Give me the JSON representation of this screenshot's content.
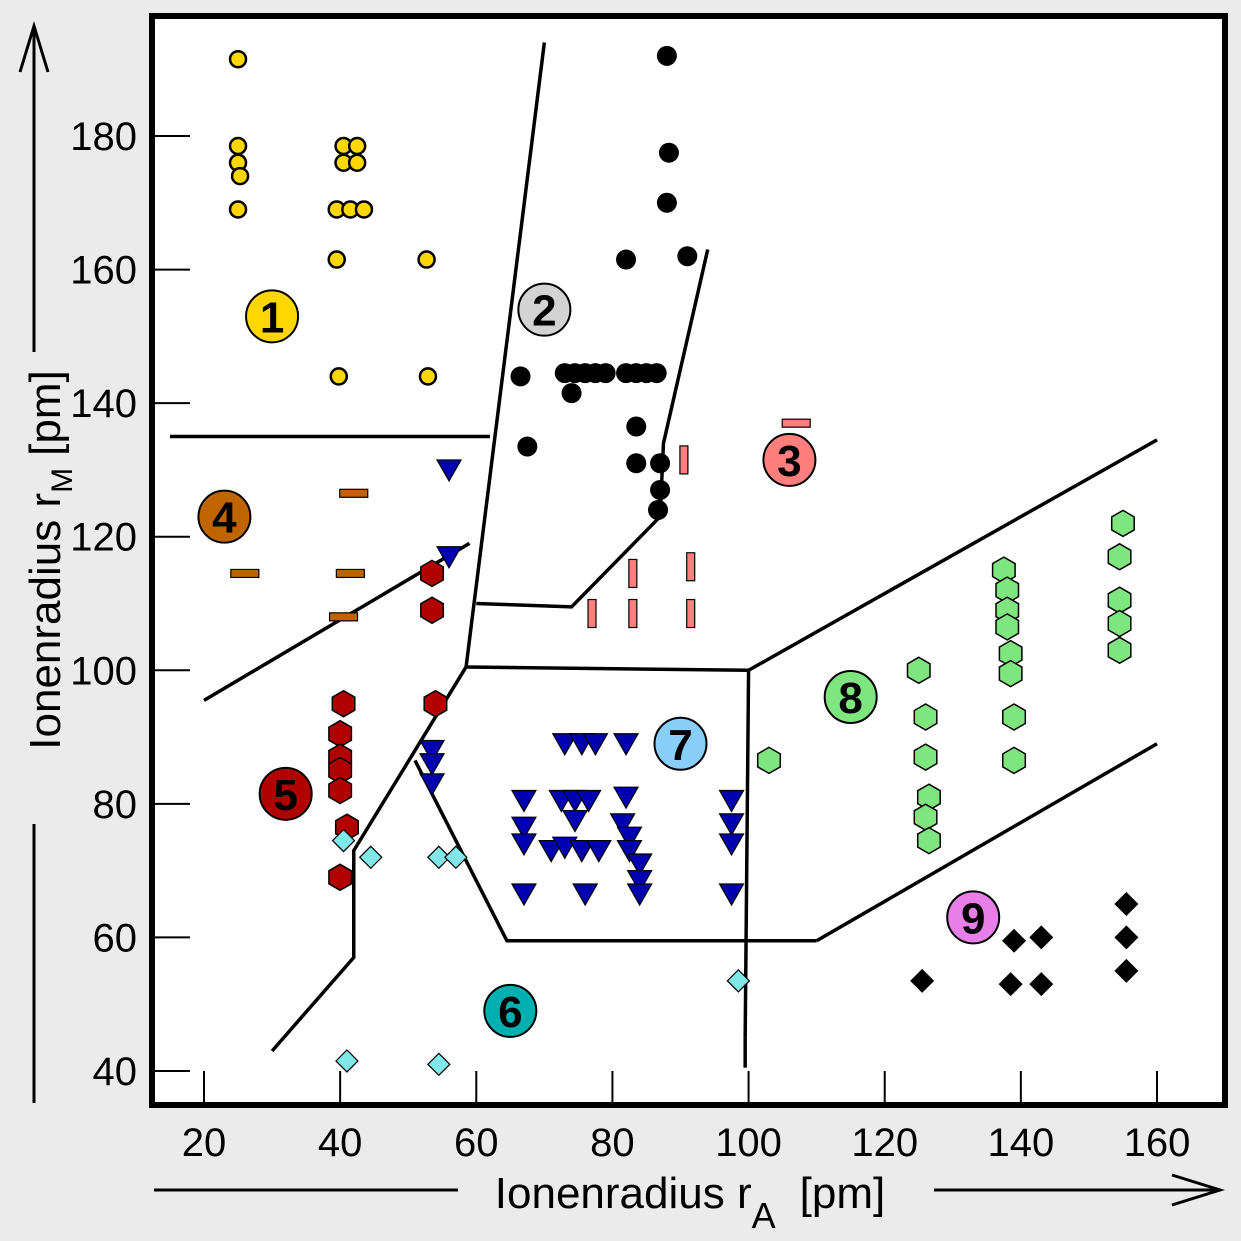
{
  "chart_data": {
    "type": "scatter",
    "title": "",
    "xlabel": "Ionenradius r_A  [pm]",
    "xlabel_main": "Ionenradius r",
    "xlabel_sub": "A",
    "xlabel_unit": "[pm]",
    "ylabel": "Ionenradius r_M [pm]",
    "ylabel_main": "Ionenradius r",
    "ylabel_sub": "M",
    "ylabel_unit": "[pm]",
    "xlim": [
      13,
      170
    ],
    "ylim": [
      35,
      198
    ],
    "xticks": [
      20,
      40,
      60,
      80,
      100,
      120,
      140,
      160
    ],
    "yticks": [
      40,
      60,
      80,
      100,
      120,
      140,
      160,
      180
    ],
    "grid": false,
    "colors": {
      "region1": "#ffd700",
      "region2": "#d3d3d3",
      "region3": "#ff7f7f",
      "region4": "#c06400",
      "region5": "#b00000",
      "region6": "#00b0b0",
      "region7": "#87cefa",
      "region8": "#7fe67f",
      "region9": "#e87ee8",
      "series2": "#000000",
      "series6": "#80e8e8",
      "series7": "#0000b0",
      "series9": "#000000"
    },
    "regions": [
      {
        "id": "1",
        "label": "1",
        "x": 30,
        "y": 153,
        "color": "#ffd700"
      },
      {
        "id": "2",
        "label": "2",
        "x": 70,
        "y": 154,
        "color": "#d3d3d3"
      },
      {
        "id": "3",
        "label": "3",
        "x": 106,
        "y": 131.5,
        "color": "#ff7f7f"
      },
      {
        "id": "4",
        "label": "4",
        "x": 23,
        "y": 123,
        "color": "#c06400"
      },
      {
        "id": "5",
        "label": "5",
        "x": 32,
        "y": 81.5,
        "color": "#b00000"
      },
      {
        "id": "6",
        "label": "6",
        "x": 65,
        "y": 49,
        "color": "#00b0b0"
      },
      {
        "id": "7",
        "label": "7",
        "x": 90,
        "y": 89,
        "color": "#87cefa"
      },
      {
        "id": "8",
        "label": "8",
        "x": 115,
        "y": 96,
        "color": "#7fe67f"
      },
      {
        "id": "9",
        "label": "9",
        "x": 133,
        "y": 63,
        "color": "#e87ee8"
      }
    ],
    "boundaries": [
      {
        "name": "b1-4",
        "points": [
          [
            15,
            135
          ],
          [
            62,
            135
          ]
        ]
      },
      {
        "name": "b1-2",
        "points": [
          [
            70,
            194
          ],
          [
            58.5,
            100.5
          ]
        ]
      },
      {
        "name": "b2-3",
        "points": [
          [
            94,
            163
          ],
          [
            87.5,
            134
          ],
          [
            87,
            123
          ],
          [
            74,
            109.5
          ],
          [
            60,
            110
          ]
        ]
      },
      {
        "name": "b4-5",
        "points": [
          [
            20,
            95.5
          ],
          [
            59,
            119
          ]
        ]
      },
      {
        "name": "b5-6-7",
        "points": [
          [
            58.5,
            100.5
          ],
          [
            42,
            73
          ],
          [
            42,
            57
          ],
          [
            30,
            43
          ]
        ]
      },
      {
        "name": "b7-top",
        "points": [
          [
            58.5,
            100.5
          ],
          [
            100,
            100
          ]
        ]
      },
      {
        "name": "b7-left",
        "points": [
          [
            51,
            86.5
          ],
          [
            64.5,
            59.5
          ],
          [
            110,
            59.5
          ]
        ]
      },
      {
        "name": "b7-8",
        "points": [
          [
            100,
            100
          ],
          [
            99.5,
            45
          ]
        ]
      },
      {
        "name": "b8-top",
        "points": [
          [
            100,
            100
          ],
          [
            160,
            134.5
          ]
        ]
      },
      {
        "name": "b8-9",
        "points": [
          [
            110,
            59.5
          ],
          [
            160,
            89
          ]
        ]
      },
      {
        "name": "b-stub",
        "points": [
          [
            99.5,
            45
          ],
          [
            99.5,
            40.5
          ]
        ]
      }
    ],
    "series": [
      {
        "name": "region-1",
        "marker": "circle",
        "color": "#ffd700",
        "points": [
          [
            25,
            191.5
          ],
          [
            25,
            178.5
          ],
          [
            25,
            176
          ],
          [
            25.3,
            174
          ],
          [
            25,
            169
          ],
          [
            39.5,
            169
          ],
          [
            41.5,
            169
          ],
          [
            43.5,
            169
          ],
          [
            40.5,
            178.5
          ],
          [
            42.5,
            178.5
          ],
          [
            40.5,
            176
          ],
          [
            42.5,
            176
          ],
          [
            39.5,
            161.5
          ],
          [
            52.7,
            161.5
          ],
          [
            39.8,
            144
          ],
          [
            52.9,
            144
          ]
        ]
      },
      {
        "name": "region-2",
        "marker": "filled-circle",
        "color": "#000000",
        "points": [
          [
            88,
            192
          ],
          [
            88.3,
            177.5
          ],
          [
            88,
            170
          ],
          [
            82,
            161.5
          ],
          [
            91,
            162
          ],
          [
            66.5,
            144
          ],
          [
            73,
            144.5
          ],
          [
            74.5,
            144.5
          ],
          [
            76,
            144.5
          ],
          [
            77.5,
            144.5
          ],
          [
            79,
            144.5
          ],
          [
            82,
            144.5
          ],
          [
            83.5,
            144.5
          ],
          [
            85,
            144.5
          ],
          [
            86.5,
            144.5
          ],
          [
            74,
            141.5
          ],
          [
            67.5,
            133.5
          ],
          [
            83.5,
            136.5
          ],
          [
            83.5,
            131
          ],
          [
            87,
            131
          ],
          [
            87,
            127
          ],
          [
            86.7,
            124
          ]
        ]
      },
      {
        "name": "region-3",
        "marker": "vertical-bar",
        "color": "#ff7f7f",
        "points": [
          [
            90.5,
            131.5
          ],
          [
            77,
            108.5
          ],
          [
            83,
            108.5
          ],
          [
            83,
            114.5
          ],
          [
            91.5,
            108.5
          ],
          [
            91.5,
            115.5
          ]
        ]
      },
      {
        "name": "region-3-horizontal",
        "marker": "horizontal-bar",
        "color": "#ff7f7f",
        "points": [
          [
            107,
            137
          ]
        ]
      },
      {
        "name": "region-4",
        "marker": "horizontal-bar",
        "color": "#c06400",
        "points": [
          [
            26,
            114.5
          ],
          [
            40.5,
            108
          ],
          [
            41.5,
            114.5
          ],
          [
            42,
            126.5
          ]
        ]
      },
      {
        "name": "region-5",
        "marker": "hexagon",
        "color": "#b00000",
        "points": [
          [
            53.5,
            114.5
          ],
          [
            53.5,
            109
          ],
          [
            54,
            95
          ],
          [
            40.5,
            95
          ],
          [
            40,
            90.5
          ],
          [
            40,
            87
          ],
          [
            40,
            85
          ],
          [
            40,
            82
          ],
          [
            41,
            76.5
          ],
          [
            40,
            69
          ]
        ]
      },
      {
        "name": "region-6",
        "marker": "diamond",
        "color": "#80e8e8",
        "points": [
          [
            40.5,
            74.5
          ],
          [
            44.5,
            72
          ],
          [
            54.5,
            72
          ],
          [
            57,
            72
          ],
          [
            41,
            41.5
          ],
          [
            54.5,
            41
          ],
          [
            98.5,
            53.5
          ]
        ]
      },
      {
        "name": "region-7",
        "marker": "triangle-down",
        "color": "#0000b0",
        "points": [
          [
            56,
            130
          ],
          [
            56,
            117
          ],
          [
            53.5,
            88
          ],
          [
            53.5,
            86
          ],
          [
            53.5,
            83
          ],
          [
            67,
            80.5
          ],
          [
            67,
            76.5
          ],
          [
            67,
            74
          ],
          [
            67,
            66.5
          ],
          [
            71,
            73
          ],
          [
            73,
            89
          ],
          [
            75.5,
            89
          ],
          [
            77.5,
            89
          ],
          [
            82,
            89
          ],
          [
            72.5,
            80.5
          ],
          [
            74.5,
            80.5
          ],
          [
            76.5,
            80.5
          ],
          [
            82,
            81
          ],
          [
            74.5,
            77.5
          ],
          [
            81.5,
            77
          ],
          [
            82.5,
            75
          ],
          [
            82.5,
            73
          ],
          [
            73,
            73.5
          ],
          [
            75.5,
            73
          ],
          [
            78,
            73
          ],
          [
            76,
            66.5
          ],
          [
            84,
            71
          ],
          [
            84,
            68.5
          ],
          [
            84,
            66.5
          ],
          [
            97.5,
            80.5
          ],
          [
            97.5,
            77
          ],
          [
            97.5,
            74
          ],
          [
            97.5,
            66.5
          ]
        ]
      },
      {
        "name": "region-8",
        "marker": "hexagon",
        "color": "#7fe67f",
        "points": [
          [
            103,
            86.5
          ],
          [
            125,
            100
          ],
          [
            126,
            93
          ],
          [
            126,
            87
          ],
          [
            126.5,
            81
          ],
          [
            126,
            78
          ],
          [
            126.5,
            74.5
          ],
          [
            137.5,
            115
          ],
          [
            138,
            112
          ],
          [
            138,
            109
          ],
          [
            138,
            106.5
          ],
          [
            138.5,
            102.5
          ],
          [
            138.5,
            99.5
          ],
          [
            139,
            93
          ],
          [
            139,
            86.5
          ],
          [
            155,
            122
          ],
          [
            154.5,
            117
          ],
          [
            154.5,
            110.5
          ],
          [
            154.5,
            107
          ],
          [
            154.5,
            103
          ]
        ]
      },
      {
        "name": "region-9",
        "marker": "filled-diamond",
        "color": "#000000",
        "points": [
          [
            125.5,
            53.5
          ],
          [
            139,
            59.5
          ],
          [
            143,
            60
          ],
          [
            138.5,
            53
          ],
          [
            143,
            53
          ],
          [
            155.5,
            65
          ],
          [
            155.5,
            60
          ],
          [
            155.5,
            55
          ]
        ]
      }
    ]
  }
}
